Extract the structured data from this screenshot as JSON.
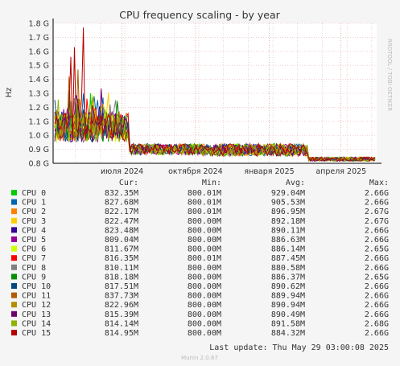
{
  "chart_data": {
    "type": "line",
    "title": "CPU frequency scaling - by year",
    "ylabel": "Hz",
    "side_label": "RRDTOOL / TOBI OETIKER",
    "ylim": [
      0.8,
      1.8
    ],
    "y_ticks": [
      "1.8 G",
      "1.7 G",
      "1.6 G",
      "1.5 G",
      "1.4 G",
      "1.3 G",
      "1.2 G",
      "1.1 G",
      "1.0 G",
      "0.9 G",
      "0.8 G"
    ],
    "x_ticks": [
      "июля 2024",
      "октября 2024",
      "января 2025",
      "апреля 2025"
    ],
    "grid": true,
    "legend_headers": [
      "Cur:",
      "Min:",
      "Avg:",
      "Max:"
    ],
    "series": [
      {
        "name": "CPU 0",
        "color": "#00cc00",
        "cur": "832.35M",
        "min": "800.01M",
        "avg": "929.04M",
        "max": "2.66G"
      },
      {
        "name": "CPU 1",
        "color": "#0066b3",
        "cur": "827.68M",
        "min": "800.01M",
        "avg": "905.53M",
        "max": "2.66G"
      },
      {
        "name": "CPU 2",
        "color": "#ff8000",
        "cur": "822.17M",
        "min": "800.01M",
        "avg": "896.95M",
        "max": "2.67G"
      },
      {
        "name": "CPU 3",
        "color": "#ffcc00",
        "cur": "822.47M",
        "min": "800.00M",
        "avg": "892.18M",
        "max": "2.67G"
      },
      {
        "name": "CPU 4",
        "color": "#330099",
        "cur": "823.48M",
        "min": "800.00M",
        "avg": "890.11M",
        "max": "2.66G"
      },
      {
        "name": "CPU 5",
        "color": "#990099",
        "cur": "809.04M",
        "min": "800.00M",
        "avg": "886.63M",
        "max": "2.66G"
      },
      {
        "name": "CPU 6",
        "color": "#ccff00",
        "cur": "811.67M",
        "min": "800.00M",
        "avg": "886.14M",
        "max": "2.65G"
      },
      {
        "name": "CPU 7",
        "color": "#ff0000",
        "cur": "816.35M",
        "min": "800.01M",
        "avg": "887.45M",
        "max": "2.66G"
      },
      {
        "name": "CPU 8",
        "color": "#808080",
        "cur": "810.11M",
        "min": "800.00M",
        "avg": "880.58M",
        "max": "2.66G"
      },
      {
        "name": "CPU 9",
        "color": "#008f00",
        "cur": "818.18M",
        "min": "800.00M",
        "avg": "886.37M",
        "max": "2.65G"
      },
      {
        "name": "CPU 10",
        "color": "#00487d",
        "cur": "817.51M",
        "min": "800.00M",
        "avg": "890.62M",
        "max": "2.66G"
      },
      {
        "name": "CPU 11",
        "color": "#b35a00",
        "cur": "837.73M",
        "min": "800.00M",
        "avg": "889.94M",
        "max": "2.66G"
      },
      {
        "name": "CPU 12",
        "color": "#b38f00",
        "cur": "822.96M",
        "min": "800.00M",
        "avg": "890.94M",
        "max": "2.66G"
      },
      {
        "name": "CPU 13",
        "color": "#6b006b",
        "cur": "815.39M",
        "min": "800.00M",
        "avg": "890.49M",
        "max": "2.66G"
      },
      {
        "name": "CPU 14",
        "color": "#8fb300",
        "cur": "814.14M",
        "min": "800.00M",
        "avg": "891.58M",
        "max": "2.68G"
      },
      {
        "name": "CPU 15",
        "color": "#b30000",
        "cur": "814.95M",
        "min": "800.00M",
        "avg": "884.32M",
        "max": "2.66G"
      }
    ],
    "last_update": "Last update: Thu May 29 03:00:08 2025",
    "footer": "Munin 2.0.67"
  }
}
